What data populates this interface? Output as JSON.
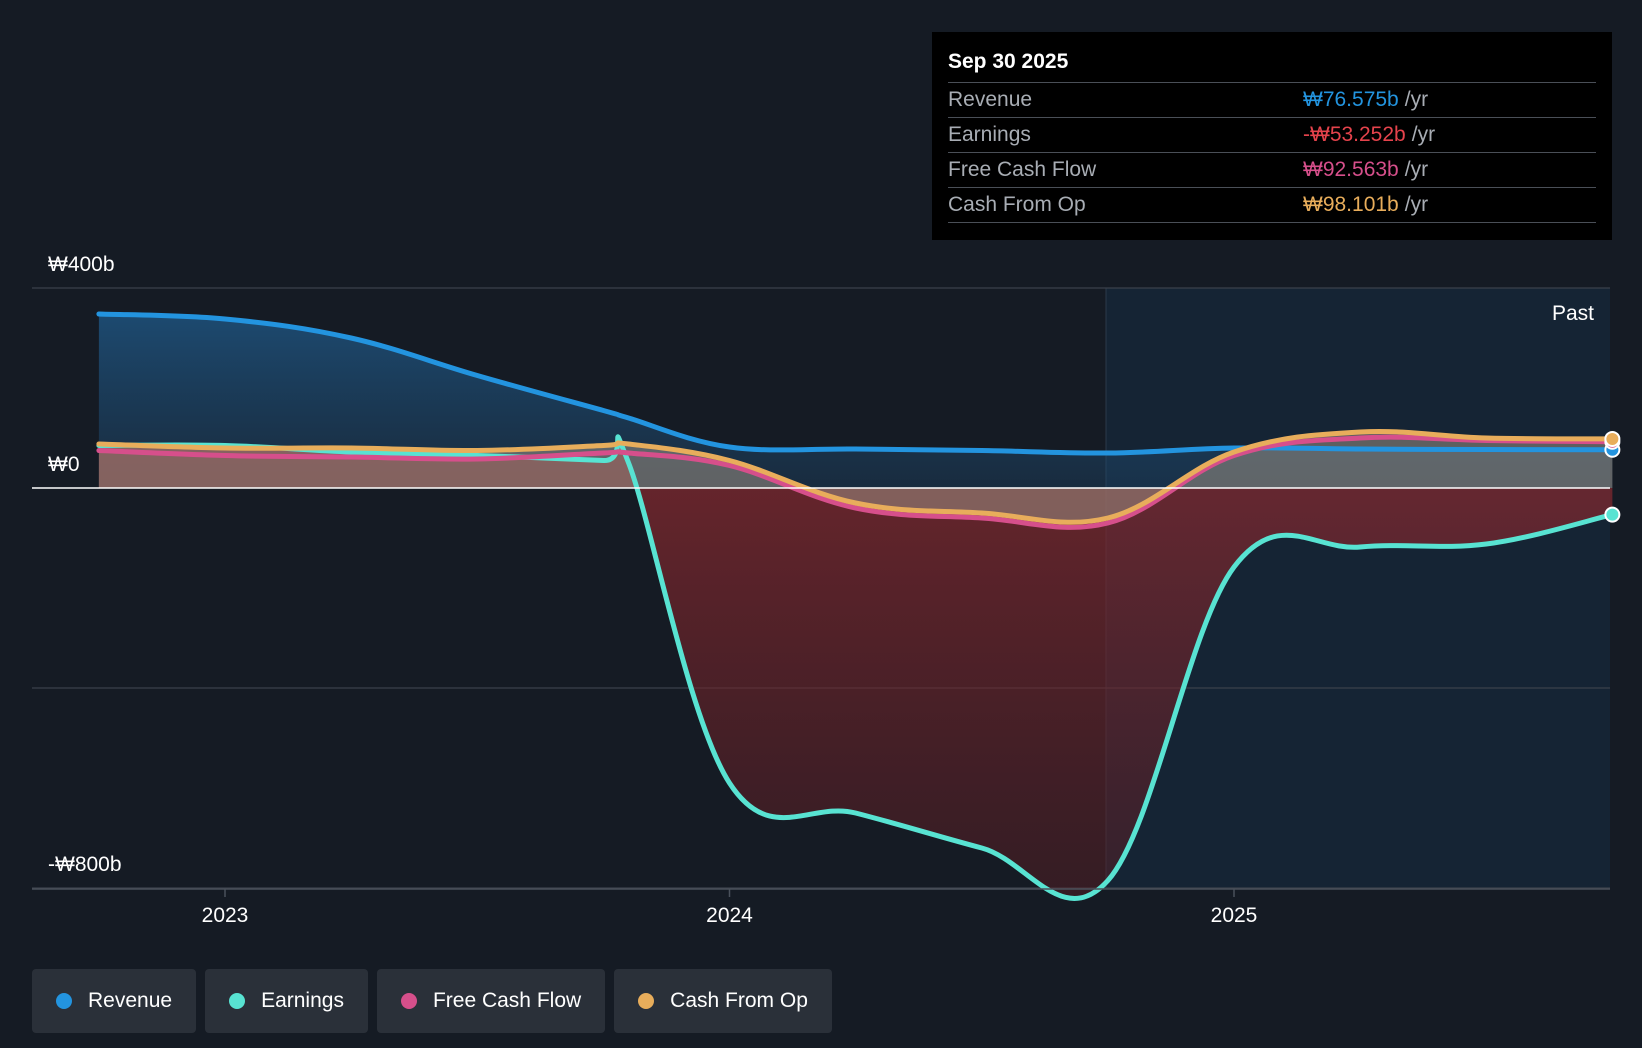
{
  "chart_data": {
    "type": "line",
    "title": "",
    "currency_symbol": "₩",
    "y_labels": [
      "₩400b",
      "₩0",
      "-₩800b"
    ],
    "ylim": [
      -800,
      400
    ],
    "x_ticks": [
      "2023",
      "2024",
      "2025"
    ],
    "region_label": "Past",
    "highlight_date": "Sep 30 2025",
    "x": [
      2022.75,
      2023.0,
      2023.25,
      2023.5,
      2023.75,
      2023.8,
      2024.0,
      2024.25,
      2024.5,
      2024.75,
      2025.0,
      2025.25,
      2025.5,
      2025.75
    ],
    "series": [
      {
        "name": "Revenue",
        "color": "#2394df",
        "fill": true,
        "values": [
          348,
          338,
          300,
          225,
          155,
          140,
          82,
          78,
          75,
          70,
          80,
          78,
          77,
          76.575
        ]
      },
      {
        "name": "Earnings",
        "color": "#58e3d2",
        "fill": false,
        "values": [
          85,
          85,
          72,
          65,
          55,
          50,
          -590,
          -650,
          -720,
          -785,
          -158,
          -118,
          -112,
          -53.252
        ]
      },
      {
        "name": "Free Cash Flow",
        "color": "#d64f8b",
        "fill": false,
        "values": [
          75,
          65,
          62,
          58,
          70,
          70,
          45,
          -40,
          -60,
          -70,
          65,
          100,
          95,
          92.563
        ]
      },
      {
        "name": "Cash From Op",
        "color": "#e8ad5b",
        "fill": false,
        "values": [
          88,
          80,
          80,
          75,
          85,
          88,
          55,
          -30,
          -50,
          -60,
          72,
          112,
          100,
          98.101
        ]
      }
    ]
  },
  "tooltip": {
    "date": "Sep 30 2025",
    "rows": [
      {
        "label": "Revenue",
        "value": "₩76.575b",
        "unit": "/yr",
        "color": "#2394df"
      },
      {
        "label": "Earnings",
        "value": "-₩53.252b",
        "unit": "/yr",
        "color": "#e5434c"
      },
      {
        "label": "Free Cash Flow",
        "value": "₩92.563b",
        "unit": "/yr",
        "color": "#d64f8b"
      },
      {
        "label": "Cash From Op",
        "value": "₩98.101b",
        "unit": "/yr",
        "color": "#e8ad5b"
      }
    ]
  },
  "legend": [
    {
      "label": "Revenue",
      "color": "#2394df"
    },
    {
      "label": "Earnings",
      "color": "#58e3d2"
    },
    {
      "label": "Free Cash Flow",
      "color": "#d64f8b"
    },
    {
      "label": "Cash From Op",
      "color": "#e8ad5b"
    }
  ]
}
